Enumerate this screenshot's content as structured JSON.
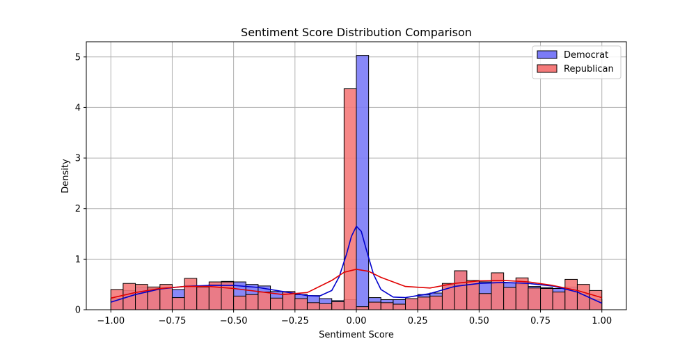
{
  "chart_data": {
    "type": "histogram",
    "title": "Sentiment Score Distribution Comparison",
    "xlabel": "Sentiment Score",
    "ylabel": "Density",
    "xlim": [
      -1.1,
      1.1
    ],
    "ylim": [
      0,
      5.3
    ],
    "xticks": [
      -1.0,
      -0.75,
      -0.5,
      -0.25,
      0.0,
      0.25,
      0.5,
      0.75,
      1.0
    ],
    "xtick_labels": [
      "−1.00",
      "−0.75",
      "−0.50",
      "−0.25",
      "0.00",
      "0.25",
      "0.50",
      "0.75",
      "1.00"
    ],
    "yticks": [
      0,
      1,
      2,
      3,
      4,
      5
    ],
    "ytick_labels": [
      "0",
      "1",
      "2",
      "3",
      "4",
      "5"
    ],
    "grid": true,
    "legend_position": "top-right",
    "bin_width": 0.05,
    "series": [
      {
        "name": "Democrat",
        "fill": "#7b7bf7",
        "line": "#0000cc",
        "bin_starts": [
          -1.0,
          -0.95,
          -0.9,
          -0.85,
          -0.8,
          -0.75,
          -0.7,
          -0.65,
          -0.6,
          -0.55,
          -0.5,
          -0.45,
          -0.4,
          -0.35,
          -0.3,
          -0.25,
          -0.2,
          -0.15,
          -0.1,
          -0.05,
          0.0,
          0.05,
          0.1,
          0.15,
          0.2,
          0.25,
          0.3,
          0.35,
          0.4,
          0.45,
          0.5,
          0.55,
          0.6,
          0.65,
          0.7,
          0.75,
          0.8,
          0.85,
          0.9,
          0.95
        ],
        "values": [
          0.22,
          0.38,
          0.45,
          0.42,
          0.44,
          0.4,
          0.48,
          0.45,
          0.5,
          0.56,
          0.55,
          0.5,
          0.47,
          0.36,
          0.34,
          0.3,
          0.28,
          0.22,
          0.18,
          0.2,
          5.03,
          0.24,
          0.2,
          0.2,
          0.22,
          0.3,
          0.33,
          0.5,
          0.77,
          0.5,
          0.55,
          0.58,
          0.53,
          0.5,
          0.46,
          0.44,
          0.42,
          0.45,
          0.3,
          0.2
        ],
        "kde": [
          [
            -1.0,
            0.15
          ],
          [
            -0.9,
            0.3
          ],
          [
            -0.8,
            0.41
          ],
          [
            -0.7,
            0.46
          ],
          [
            -0.6,
            0.48
          ],
          [
            -0.5,
            0.48
          ],
          [
            -0.4,
            0.44
          ],
          [
            -0.3,
            0.36
          ],
          [
            -0.2,
            0.28
          ],
          [
            -0.15,
            0.27
          ],
          [
            -0.1,
            0.38
          ],
          [
            -0.07,
            0.65
          ],
          [
            -0.04,
            1.1
          ],
          [
            -0.02,
            1.45
          ],
          [
            0.0,
            1.65
          ],
          [
            0.02,
            1.55
          ],
          [
            0.04,
            1.2
          ],
          [
            0.07,
            0.7
          ],
          [
            0.1,
            0.4
          ],
          [
            0.15,
            0.25
          ],
          [
            0.2,
            0.24
          ],
          [
            0.3,
            0.32
          ],
          [
            0.4,
            0.46
          ],
          [
            0.5,
            0.52
          ],
          [
            0.6,
            0.54
          ],
          [
            0.7,
            0.52
          ],
          [
            0.8,
            0.47
          ],
          [
            0.9,
            0.35
          ],
          [
            1.0,
            0.13
          ]
        ]
      },
      {
        "name": "Republican",
        "fill": "#f57a7a",
        "line": "#e00000",
        "bin_starts": [
          -1.0,
          -0.95,
          -0.9,
          -0.85,
          -0.8,
          -0.75,
          -0.7,
          -0.65,
          -0.6,
          -0.55,
          -0.5,
          -0.45,
          -0.4,
          -0.35,
          -0.3,
          -0.25,
          -0.2,
          -0.15,
          -0.1,
          -0.05,
          0.0,
          0.05,
          0.1,
          0.15,
          0.2,
          0.25,
          0.3,
          0.35,
          0.4,
          0.45,
          0.5,
          0.55,
          0.6,
          0.65,
          0.7,
          0.75,
          0.8,
          0.85,
          0.9,
          0.95
        ],
        "values": [
          0.4,
          0.52,
          0.5,
          0.45,
          0.5,
          0.24,
          0.62,
          0.45,
          0.55,
          0.55,
          0.27,
          0.3,
          0.35,
          0.23,
          0.36,
          0.22,
          0.14,
          0.12,
          0.16,
          4.37,
          0.06,
          0.15,
          0.14,
          0.11,
          0.22,
          0.25,
          0.27,
          0.52,
          0.77,
          0.58,
          0.32,
          0.73,
          0.44,
          0.63,
          0.43,
          0.42,
          0.35,
          0.6,
          0.5,
          0.38
        ],
        "kde": [
          [
            -1.0,
            0.23
          ],
          [
            -0.9,
            0.34
          ],
          [
            -0.8,
            0.42
          ],
          [
            -0.7,
            0.46
          ],
          [
            -0.6,
            0.46
          ],
          [
            -0.5,
            0.42
          ],
          [
            -0.4,
            0.36
          ],
          [
            -0.3,
            0.3
          ],
          [
            -0.2,
            0.34
          ],
          [
            -0.1,
            0.58
          ],
          [
            -0.05,
            0.74
          ],
          [
            0.0,
            0.8
          ],
          [
            0.05,
            0.76
          ],
          [
            0.1,
            0.64
          ],
          [
            0.2,
            0.46
          ],
          [
            0.3,
            0.43
          ],
          [
            0.4,
            0.52
          ],
          [
            0.5,
            0.57
          ],
          [
            0.6,
            0.58
          ],
          [
            0.7,
            0.55
          ],
          [
            0.8,
            0.48
          ],
          [
            0.9,
            0.38
          ],
          [
            1.0,
            0.24
          ]
        ]
      }
    ]
  }
}
